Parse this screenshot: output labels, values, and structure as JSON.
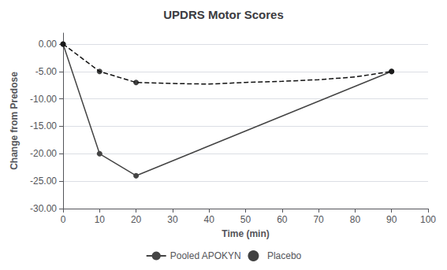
{
  "chart_data": {
    "type": "line",
    "title": "UPDRS Motor Scores",
    "xlabel": "Time (min)",
    "ylabel": "Change from Predose",
    "series": [
      {
        "name": "Pooled APOKYN",
        "type": "line",
        "x": [
          0,
          10,
          20,
          90
        ],
        "values": [
          0.0,
          -20.0,
          -24.0,
          -5.0
        ],
        "color": "#444444",
        "marker": "circle",
        "line_style": "solid"
      },
      {
        "type": "line",
        "x": [
          0,
          10,
          20,
          30,
          40,
          50,
          60,
          70,
          80,
          90
        ],
        "values": [
          0.0,
          -5.0,
          -7.0,
          -7.2,
          -7.3,
          -7.0,
          -6.8,
          -6.5,
          -6.0,
          -5.0
        ],
        "color": "#111111",
        "marker": "none",
        "line_style": "dashed"
      },
      {
        "name": "Placebo",
        "type": "scatter",
        "x": [
          0,
          10,
          20,
          90
        ],
        "values": [
          0.0,
          -5.0,
          -7.0,
          -5.0
        ],
        "color": "#111111",
        "marker": "circle"
      }
    ],
    "xlim": [
      0,
      100
    ],
    "xticks": [
      0,
      10,
      20,
      30,
      40,
      50,
      60,
      70,
      80,
      90,
      100
    ],
    "ylim": [
      -30.0,
      2.0
    ],
    "yticks": [
      {
        "value": 0.0,
        "label": "0.00"
      },
      {
        "value": -5.0,
        "label": "-5.00"
      },
      {
        "value": -10.0,
        "label": "-10.00"
      },
      {
        "value": -15.0,
        "label": "-15.00"
      },
      {
        "value": -20.0,
        "label": "-20.00"
      },
      {
        "value": -25.0,
        "label": "-25.00"
      },
      {
        "value": -30.0,
        "label": "-30.00"
      }
    ],
    "grid": true,
    "legend": "bottom"
  }
}
